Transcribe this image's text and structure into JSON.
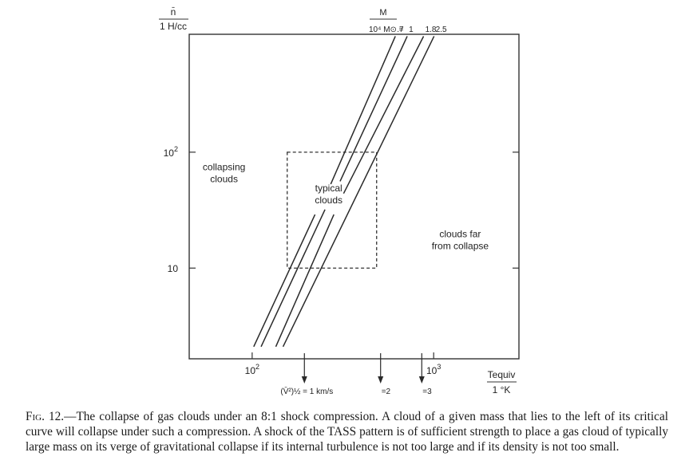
{
  "chart_data": {
    "type": "line",
    "title": "",
    "xlabel_top": "Tequiv",
    "xlabel_bottom": "1 °K",
    "ylabel_top": "n̄",
    "ylabel_bottom": "1 H/cc",
    "xscale": "log",
    "yscale": "log",
    "xlim": [
      45,
      2950
    ],
    "ylim": [
      1.65,
      1040
    ],
    "grid": false,
    "x_tick_labels": [
      {
        "value": 100,
        "base": "10",
        "exp": "2"
      },
      {
        "value": 1000,
        "base": "10",
        "exp": "3"
      }
    ],
    "y_tick_labels": [
      {
        "value": 100,
        "base": "10",
        "exp": "2"
      },
      {
        "value": 10,
        "base": "10",
        "exp": ""
      }
    ],
    "mass_label": {
      "top": "M",
      "bottom": "10⁴ M⊙ =",
      "values": [
        ".7",
        "1",
        "1.8",
        "2.5"
      ]
    },
    "series": [
      {
        "x": [
          102,
          222,
          271,
          615
        ],
        "y": [
          2.1,
          29,
          53,
          1000
        ]
      },
      {
        "x": [
          112,
          252,
          305,
          715
        ],
        "y": [
          2.1,
          32,
          56,
          1000
        ]
      },
      {
        "x": [
          135,
          282,
          319,
          880
        ],
        "y": [
          2.1,
          29,
          44,
          1000
        ]
      },
      {
        "x": [
          148,
          1005
        ],
        "y": [
          2.1,
          1000
        ]
      }
    ],
    "region_box": {
      "x": [
        156,
        485
      ],
      "y": [
        10,
        100
      ]
    },
    "annotations": [
      {
        "text": [
          "collapsing",
          "clouds"
        ],
        "x": 70,
        "y": 70
      },
      {
        "text": [
          "typical",
          "clouds"
        ],
        "x": 264,
        "y": 46
      },
      {
        "text": [
          "clouds far",
          "from collapse"
        ],
        "x": 1400,
        "y": 18.5
      },
      {
        "text": [
          "(V̄²)½ = 1 km/s"
        ],
        "x": 194,
        "marker": true
      },
      {
        "text": [
          "=2"
        ],
        "x": 510,
        "marker": true
      },
      {
        "text": [
          "=3"
        ],
        "x": 860,
        "marker": true
      }
    ]
  },
  "caption": {
    "lead": "Fig. 12.",
    "text": "—The collapse of gas clouds under an 8:1 shock compression. A cloud of a given mass that lies to the left of its critical curve will collapse under such a compression. A shock of the TASS pattern is of sufficient strength to place a gas cloud of typically large mass on its verge of gravitational collapse if its internal turbulence is not too large and if its density is not too small."
  }
}
